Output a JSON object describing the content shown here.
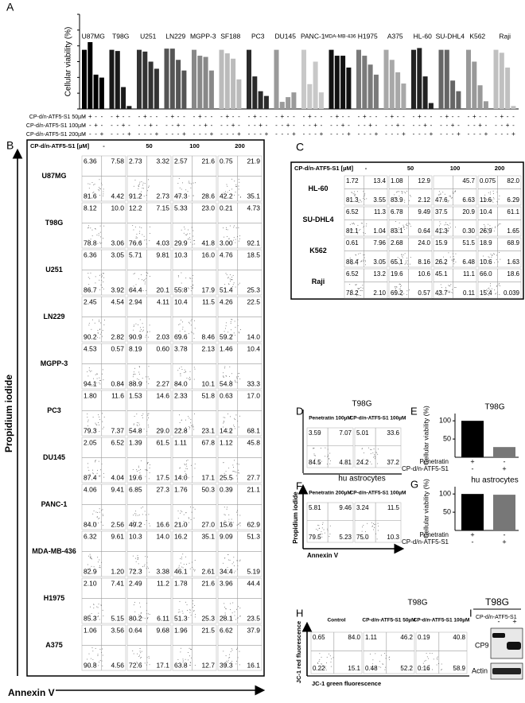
{
  "panel_A": {
    "label": "A",
    "ylabel": "Cellular viability (%)",
    "ylim": [
      0,
      160
    ],
    "groups": [
      {
        "name": "U87MG",
        "color": "#000000",
        "values": [
          100,
          113,
          58,
          53
        ]
      },
      {
        "name": "T98G",
        "color": "#1a1a1a",
        "values": [
          100,
          98,
          37,
          5
        ]
      },
      {
        "name": "U251",
        "color": "#333333",
        "values": [
          100,
          97,
          80,
          68
        ]
      },
      {
        "name": "LN229",
        "color": "#555555",
        "values": [
          102,
          102,
          83,
          65
        ]
      },
      {
        "name": "MGPP-3",
        "color": "#888888",
        "values": [
          100,
          90,
          88,
          65
        ]
      },
      {
        "name": "SF188",
        "color": "#bbbbbb",
        "values": [
          100,
          94,
          85,
          50
        ]
      },
      {
        "name": "PC3",
        "color": "#2a2a2a",
        "values": [
          100,
          55,
          30,
          22
        ]
      },
      {
        "name": "DU145",
        "color": "#9a9a9a",
        "values": [
          100,
          12,
          20,
          28
        ]
      },
      {
        "name": "PANC-1",
        "color": "#c8c8c8",
        "values": [
          100,
          42,
          80,
          28
        ]
      },
      {
        "name": "MDA-MB-436",
        "color": "#111111",
        "values": [
          100,
          90,
          90,
          70
        ]
      },
      {
        "name": "H1975",
        "color": "#7a7a7a",
        "values": [
          100,
          90,
          75,
          58
        ]
      },
      {
        "name": "A375",
        "color": "#a8a8a8",
        "values": [
          100,
          83,
          62,
          43
        ]
      },
      {
        "name": "HL-60",
        "color": "#222222",
        "values": [
          100,
          103,
          55,
          10
        ]
      },
      {
        "name": "SU-DHL4",
        "color": "#666666",
        "values": [
          100,
          100,
          48,
          30
        ]
      },
      {
        "name": "K562",
        "color": "#999999",
        "values": [
          100,
          80,
          40,
          13
        ]
      },
      {
        "name": "Raji",
        "color": "#c0c0c0",
        "values": [
          100,
          95,
          70,
          5
        ]
      }
    ],
    "treatments": [
      {
        "label": "CP-d/n-ATF5-S1 50µM",
        "signs": [
          "-",
          "+",
          "-",
          "-"
        ]
      },
      {
        "label": "CP-d/n-ATF5-S1 100µM",
        "signs": [
          "-",
          "-",
          "+",
          "-"
        ]
      },
      {
        "label": "CP-d/n-ATF5-S1 200µM",
        "signs": [
          "-",
          "-",
          "-",
          "+"
        ]
      }
    ]
  },
  "panel_B": {
    "label": "B",
    "header": "CP-d/n-ATF5-S1 [µM]",
    "columns": [
      "-",
      "50",
      "100",
      "200"
    ],
    "ylabel": "Propidium iodide",
    "xlabel": "Annexin V",
    "rows": [
      {
        "name": "U87MG",
        "cells": [
          [
            "6.36",
            "7.58",
            "81.6",
            "4.42"
          ],
          [
            "2.73",
            "3.32",
            "91.2",
            "2.73"
          ],
          [
            "2.57",
            "21.6",
            "47.3",
            "28.6"
          ],
          [
            "0.75",
            "21.9",
            "42.2",
            "35.1"
          ]
        ]
      },
      {
        "name": "T98G",
        "cells": [
          [
            "8.12",
            "10.0",
            "78.8",
            "3.06"
          ],
          [
            "12.2",
            "7.15",
            "76.6",
            "4.03"
          ],
          [
            "5.33",
            "23.0",
            "29.9",
            "41.8"
          ],
          [
            "0.21",
            "4.73",
            "3.00",
            "92.1"
          ]
        ]
      },
      {
        "name": "U251",
        "cells": [
          [
            "6.36",
            "3.05",
            "86.7",
            "3.92"
          ],
          [
            "5.71",
            "9.81",
            "64.4",
            "20.1"
          ],
          [
            "10.3",
            "16.0",
            "55.8",
            "17.9"
          ],
          [
            "4.76",
            "18.5",
            "51.4",
            "25.3"
          ]
        ]
      },
      {
        "name": "LN229",
        "cells": [
          [
            "2.45",
            "4.54",
            "90.2",
            "2.82"
          ],
          [
            "2.94",
            "4.11",
            "90.9",
            "2.03"
          ],
          [
            "10.4",
            "11.5",
            "69.6",
            "8.46"
          ],
          [
            "4.26",
            "22.5",
            "59.2",
            "14.0"
          ]
        ]
      },
      {
        "name": "MGPP-3",
        "cells": [
          [
            "4.53",
            "0.57",
            "94.1",
            "0.84"
          ],
          [
            "8.19",
            "0.60",
            "88.9",
            "2.27"
          ],
          [
            "3.78",
            "2.13",
            "84.0",
            "10.1"
          ],
          [
            "1.46",
            "10.4",
            "54.8",
            "33.3"
          ]
        ]
      },
      {
        "name": "PC3",
        "cells": [
          [
            "1.80",
            "11.6",
            "79.3",
            "7.37"
          ],
          [
            "1.53",
            "14.6",
            "54.8",
            "29.0"
          ],
          [
            "2.33",
            "51.8",
            "22.8",
            "23.1"
          ],
          [
            "0.63",
            "17.0",
            "14.2",
            "68.1"
          ]
        ]
      },
      {
        "name": "DU145",
        "cells": [
          [
            "2.05",
            "6.52",
            "87.4",
            "4.04"
          ],
          [
            "1.39",
            "61.5",
            "19.6",
            "17.5"
          ],
          [
            "1.11",
            "67.8",
            "14.0",
            "17.1"
          ],
          [
            "1.12",
            "45.8",
            "25.5",
            "27.7"
          ]
        ]
      },
      {
        "name": "PANC-1",
        "cells": [
          [
            "4.06",
            "9.41",
            "84.0",
            "2.56"
          ],
          [
            "6.85",
            "27.3",
            "49.2",
            "16.6"
          ],
          [
            "1.76",
            "50.3",
            "21.0",
            "27.0"
          ],
          [
            "0.39",
            "21.1",
            "15.6",
            "62.9"
          ]
        ]
      },
      {
        "name": "MDA-MB-436",
        "cells": [
          [
            "6.32",
            "9.61",
            "82.9",
            "1.20"
          ],
          [
            "10.3",
            "14.0",
            "72.3",
            "3.38"
          ],
          [
            "16.2",
            "35.1",
            "46.1",
            "2.61"
          ],
          [
            "9.09",
            "51.3",
            "34.4",
            "5.19"
          ]
        ]
      },
      {
        "name": "H1975",
        "cells": [
          [
            "2.10",
            "7.41",
            "85.3",
            "5.15"
          ],
          [
            "2.49",
            "11.2",
            "80.2",
            "6.11"
          ],
          [
            "1.78",
            "21.6",
            "51.3",
            "25.3"
          ],
          [
            "3.96",
            "44.4",
            "28.1",
            "23.5"
          ]
        ]
      },
      {
        "name": "A375",
        "cells": [
          [
            "1.06",
            "3.56",
            "90.8",
            "4.56"
          ],
          [
            "0.64",
            "9.68",
            "72.6",
            "17.1"
          ],
          [
            "1.96",
            "21.5",
            "63.8",
            "12.7"
          ],
          [
            "6.62",
            "37.9",
            "39.3",
            "16.1"
          ]
        ]
      }
    ]
  },
  "panel_C": {
    "label": "C",
    "header": "CP-d/n-ATF5-S1 [µM]",
    "columns": [
      "-",
      "50",
      "100",
      "200"
    ],
    "rows": [
      {
        "name": "HL-60",
        "cells": [
          [
            "1.72",
            "13.4",
            "81.3",
            "3.55"
          ],
          [
            "1.08",
            "12.9",
            "83.9",
            "2.12"
          ],
          [
            null,
            "45.7",
            "47.6",
            "6.63"
          ],
          [
            "0.075",
            "82.0",
            "11.6",
            "6.29"
          ]
        ]
      },
      {
        "name": "SU-DHL4",
        "cells": [
          [
            "6.52",
            "11.3",
            "81.1",
            "1.04"
          ],
          [
            "6.78",
            "9.49",
            "83.1",
            "0.64"
          ],
          [
            "37.5",
            "20.9",
            "41.3",
            "0.30"
          ],
          [
            "10.4",
            "61.1",
            "26.9",
            "1.65"
          ]
        ]
      },
      {
        "name": "K562",
        "cells": [
          [
            "0.61",
            "7.96",
            "88.4",
            "3.05"
          ],
          [
            "2.68",
            "24.0",
            "65.1",
            "8.16"
          ],
          [
            "15.9",
            "51.5",
            "26.2",
            "6.48"
          ],
          [
            "18.9",
            "68.9",
            "10.6",
            "1.63"
          ]
        ]
      },
      {
        "name": "Raji",
        "cells": [
          [
            "6.52",
            "13.2",
            "78.2",
            "2.10"
          ],
          [
            "19.6",
            "10.6",
            "69.2",
            "0.57"
          ],
          [
            "45.1",
            "11.1",
            "43.7",
            "0.11"
          ],
          [
            "66.0",
            "18.6",
            "15.4",
            "0.039"
          ]
        ]
      }
    ]
  },
  "panel_D": {
    "label": "D",
    "title": "T98G",
    "columns": [
      "Penetratin 100µM",
      "CP-d/n-ATF5-S1 100µM"
    ],
    "cells": [
      [
        "3.59",
        "7.07",
        "84.5",
        "4.81"
      ],
      [
        "5.01",
        "33.6",
        "24.2",
        "37.2"
      ]
    ]
  },
  "panel_F": {
    "label": "F",
    "title": "hu astrocytes",
    "columns": [
      "Penetratin 200µM",
      "CP-d/n-ATF5-S1 100µM"
    ],
    "cells": [
      [
        "5.81",
        "9.46",
        "79.5",
        "5.23"
      ],
      [
        "3.24",
        "11.5",
        "75.0",
        "10.3"
      ]
    ],
    "ylabel": "Propidium iodide",
    "xlabel": "Annexin V"
  },
  "panel_E": {
    "label": "E",
    "title": "T98G",
    "ylabel": "Cellular viability (%)",
    "ylim": [
      0,
      120
    ],
    "yticks": [
      50,
      100
    ],
    "values": [
      100,
      28
    ],
    "colors": [
      "#000000",
      "#777777"
    ],
    "rows": [
      {
        "label": "Penetratin",
        "signs": [
          "+",
          "-"
        ]
      },
      {
        "label": "CP-d/n-ATF5-S1",
        "signs": [
          "-",
          "+"
        ]
      }
    ]
  },
  "panel_G": {
    "label": "G",
    "title": "hu astrocytes",
    "ylabel": "Cellular viability (%)",
    "ylim": [
      0,
      120
    ],
    "yticks": [
      50,
      100
    ],
    "values": [
      100,
      98
    ],
    "colors": [
      "#000000",
      "#777777"
    ],
    "rows": [
      {
        "label": "Penetratin",
        "signs": [
          "+",
          "-"
        ]
      },
      {
        "label": "CP-d/n-ATF5-S1",
        "signs": [
          "-",
          "+"
        ]
      }
    ]
  },
  "panel_H": {
    "label": "H",
    "title": "T98G",
    "columns": [
      "Control",
      "CP-d/n-ATF5-S1 50µM",
      "CP-d/n-ATF5-S1 100µM"
    ],
    "cells": [
      [
        "0.65",
        "84.0",
        "0.22",
        "15.1"
      ],
      [
        "1.11",
        "46.2",
        "0.48",
        "52.2"
      ],
      [
        "0.19",
        "40.8",
        "0.16",
        "58.9"
      ]
    ],
    "ylabel": "JC-1 red fluorescence",
    "xlabel": "JC-1 green fluorescence"
  },
  "panel_I": {
    "label": "I",
    "title": "T98G",
    "treatment": "CP-d/n-ATF5-S1",
    "signs": [
      "-",
      "+"
    ],
    "bands": [
      "CP9",
      "Actin"
    ]
  }
}
